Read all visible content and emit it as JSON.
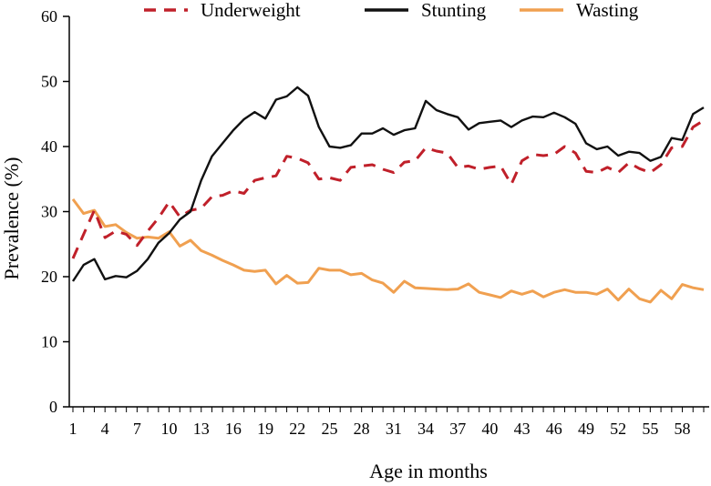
{
  "chart_data": {
    "type": "line",
    "title": "",
    "xlabel": "Age in months",
    "ylabel": "Prevalence (%)",
    "xlim": [
      1,
      60
    ],
    "ylim": [
      0,
      60
    ],
    "xticks": [
      1,
      4,
      7,
      10,
      13,
      16,
      19,
      22,
      25,
      28,
      31,
      34,
      37,
      40,
      43,
      46,
      49,
      52,
      55,
      58
    ],
    "yticks": [
      0,
      10,
      20,
      30,
      40,
      50,
      60
    ],
    "legend_position": "top",
    "x": [
      1,
      2,
      3,
      4,
      5,
      6,
      7,
      8,
      9,
      10,
      11,
      12,
      13,
      14,
      15,
      16,
      17,
      18,
      19,
      20,
      21,
      22,
      23,
      24,
      25,
      26,
      27,
      28,
      29,
      30,
      31,
      32,
      33,
      34,
      35,
      36,
      37,
      38,
      39,
      40,
      41,
      42,
      43,
      44,
      45,
      46,
      47,
      48,
      49,
      50,
      51,
      52,
      53,
      54,
      55,
      56,
      57,
      58,
      59,
      60
    ],
    "series": [
      {
        "name": "Underweight",
        "color": "#c0202a",
        "style": "dashed",
        "values": [
          22.8,
          26.5,
          30.2,
          26.0,
          27.0,
          26.5,
          24.8,
          27.0,
          29.0,
          31.5,
          29.2,
          30.2,
          30.5,
          32.3,
          32.5,
          33.2,
          32.8,
          34.8,
          35.2,
          35.5,
          38.5,
          38.2,
          37.5,
          35.0,
          35.2,
          34.8,
          36.8,
          37.0,
          37.2,
          36.5,
          36.0,
          37.6,
          37.8,
          39.8,
          39.3,
          39.0,
          36.8,
          37.0,
          36.5,
          36.8,
          37.0,
          34.2,
          37.8,
          38.8,
          38.6,
          38.8,
          40.0,
          39.0,
          36.2,
          36.0,
          36.8,
          36.0,
          37.5,
          36.6,
          36.0,
          37.2,
          39.8,
          40.0,
          43.0,
          44.0
        ]
      },
      {
        "name": "Stunting",
        "color": "#111111",
        "style": "solid",
        "values": [
          19.3,
          21.8,
          22.7,
          19.6,
          20.1,
          19.9,
          20.9,
          22.7,
          25.2,
          26.7,
          28.8,
          30.0,
          34.8,
          38.5,
          40.5,
          42.5,
          44.2,
          45.3,
          44.3,
          47.2,
          47.7,
          49.1,
          47.8,
          43.0,
          40.0,
          39.8,
          40.2,
          42.0,
          42.0,
          42.8,
          41.8,
          42.5,
          42.8,
          47.0,
          45.6,
          45.0,
          44.5,
          42.6,
          43.6,
          43.8,
          44.0,
          43.0,
          44.0,
          44.6,
          44.5,
          45.2,
          44.5,
          43.5,
          40.5,
          39.6,
          40.0,
          38.6,
          39.2,
          39.0,
          37.8,
          38.4,
          41.3,
          41.0,
          45.0,
          46.0
        ]
      },
      {
        "name": "Wasting",
        "color": "#f0a050",
        "style": "solid",
        "values": [
          31.9,
          29.7,
          30.2,
          27.7,
          28.0,
          26.8,
          25.9,
          26.1,
          25.9,
          26.9,
          24.7,
          25.6,
          24.0,
          23.3,
          22.5,
          21.8,
          21.0,
          20.8,
          21.0,
          18.9,
          20.2,
          19.0,
          19.1,
          21.3,
          21.0,
          21.0,
          20.3,
          20.5,
          19.5,
          19.0,
          17.6,
          19.3,
          18.3,
          18.2,
          18.1,
          18.0,
          18.1,
          18.9,
          17.6,
          17.2,
          16.8,
          17.8,
          17.3,
          17.8,
          16.9,
          17.6,
          18.0,
          17.6,
          17.6,
          17.3,
          18.1,
          16.4,
          18.1,
          16.6,
          16.1,
          17.9,
          16.6,
          18.8,
          18.3,
          18.0
        ]
      }
    ]
  }
}
